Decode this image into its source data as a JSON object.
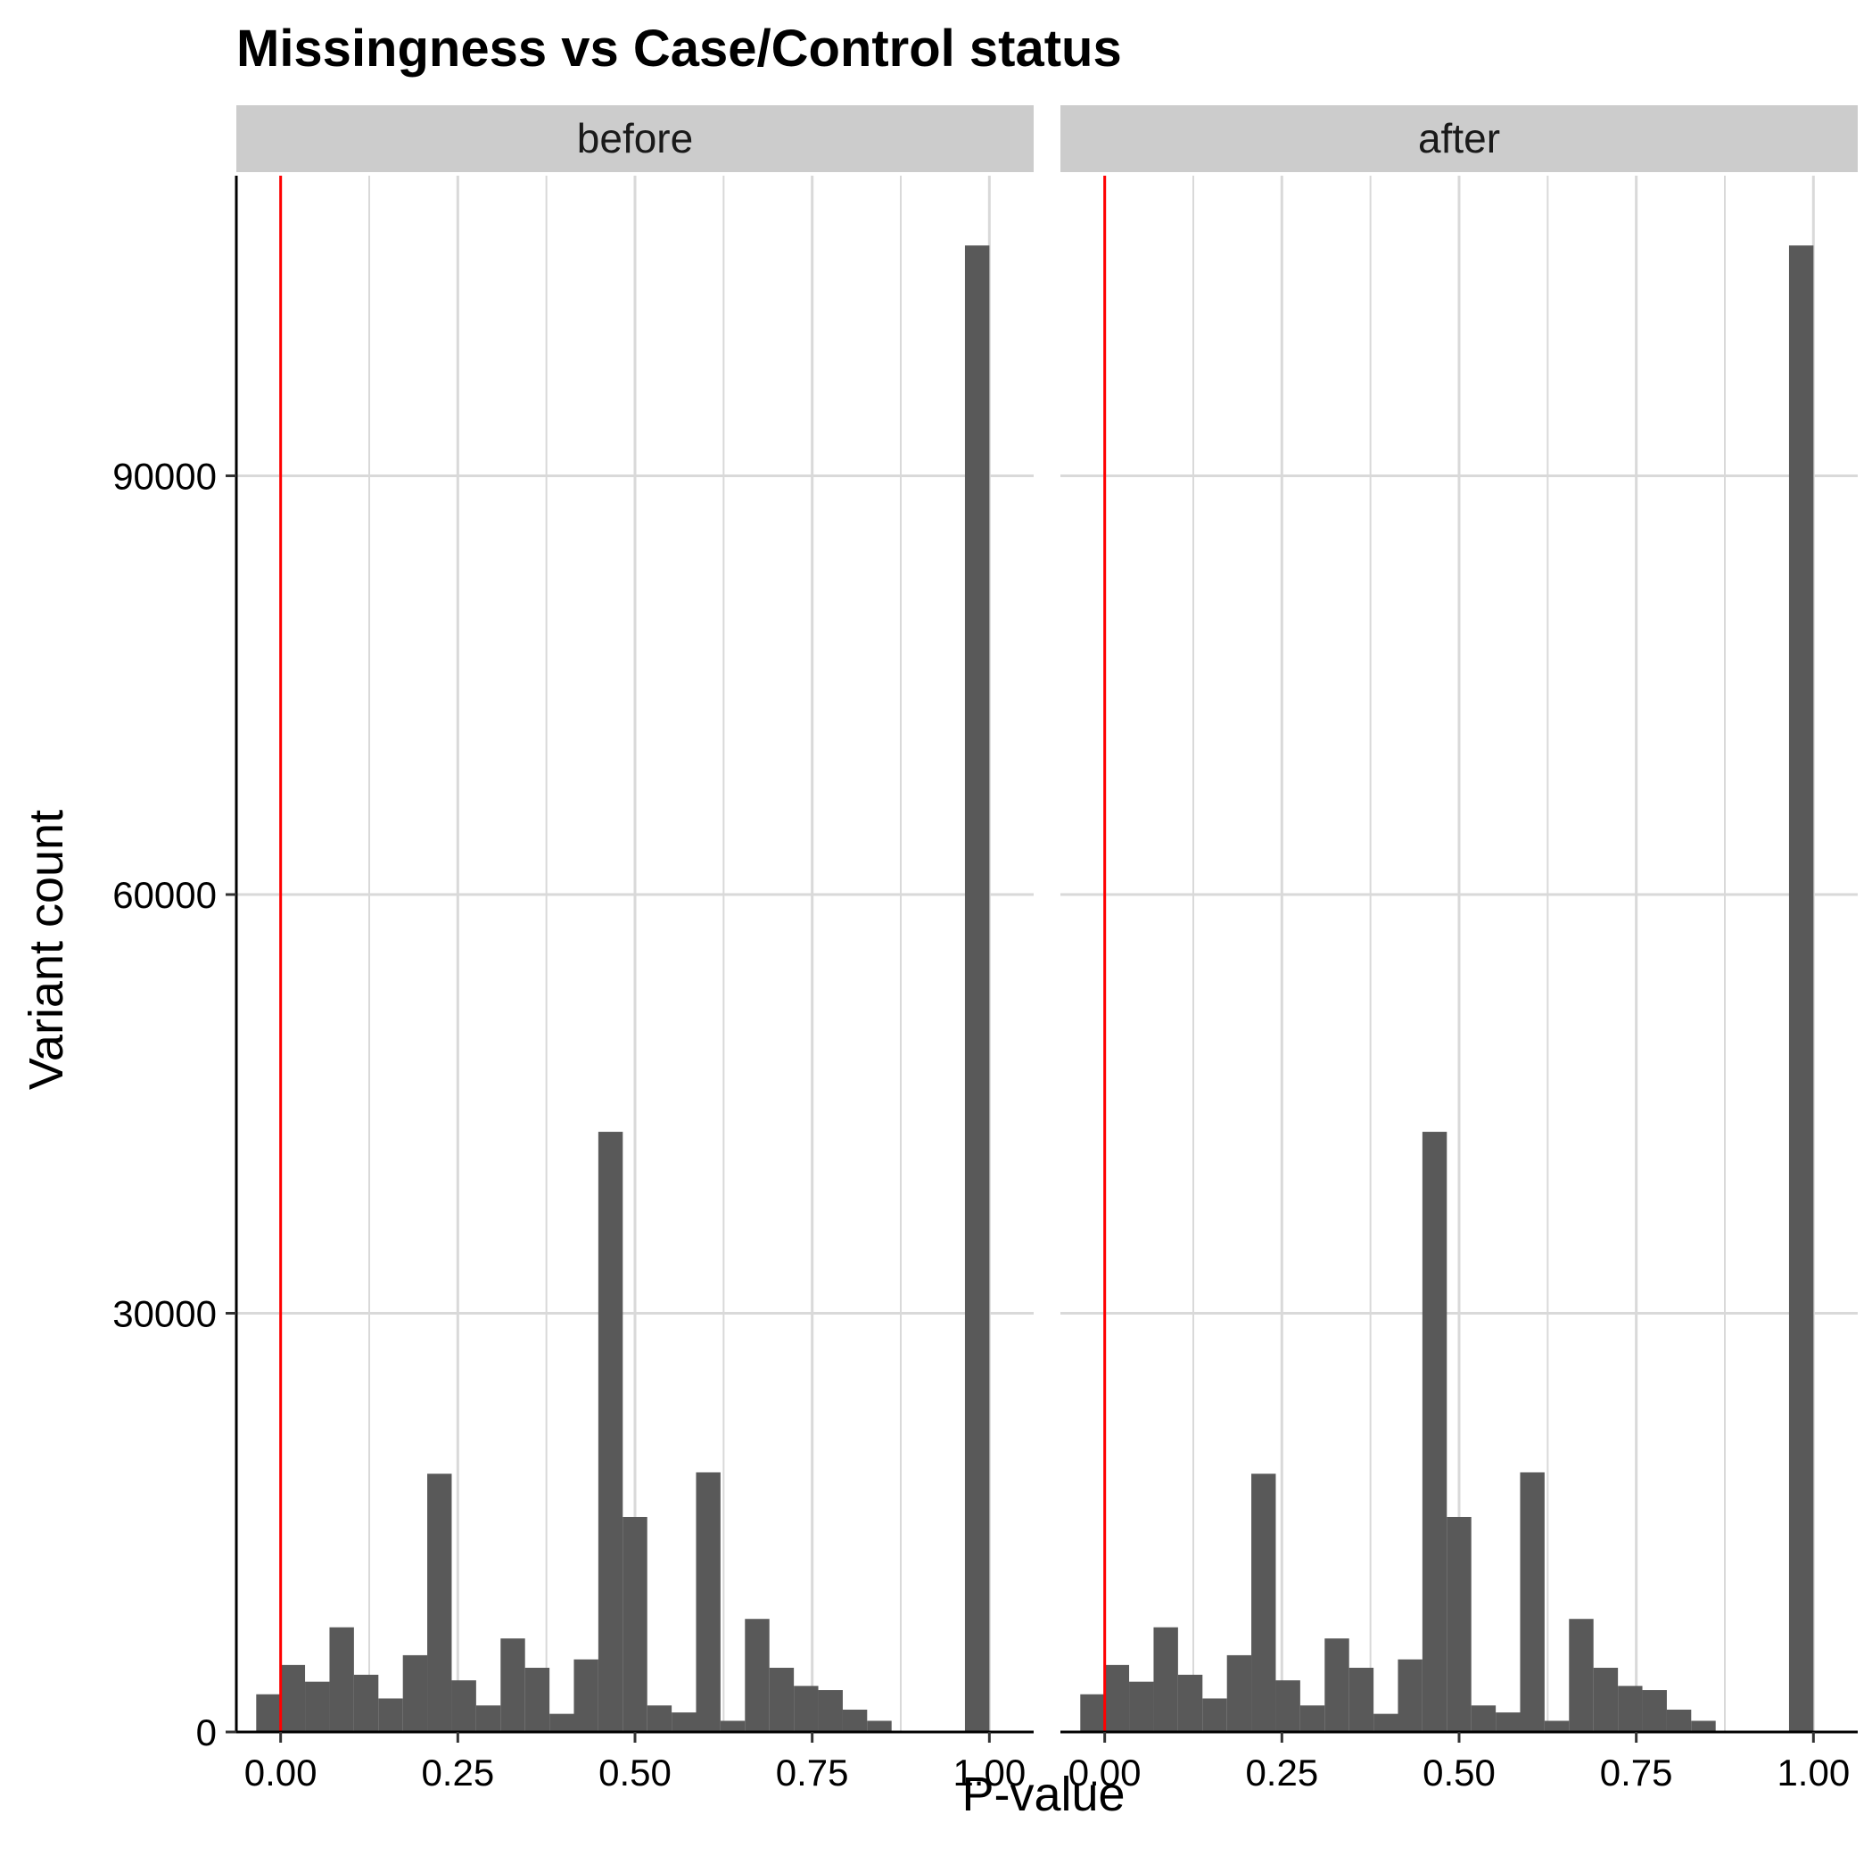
{
  "chart_data": {
    "type": "bar",
    "title": "Missingness vs Case/Control status",
    "xlabel": "P-value",
    "ylabel": "Variant count",
    "xlim": [
      -0.0625,
      1.0625
    ],
    "ylim": [
      0,
      111500
    ],
    "x_ticks": [
      0.0,
      0.25,
      0.5,
      0.75,
      1.0
    ],
    "x_tick_labels": [
      "0.00",
      "0.25",
      "0.50",
      "0.75",
      "1.00"
    ],
    "y_ticks": [
      0,
      30000,
      60000,
      90000
    ],
    "y_tick_labels": [
      "0",
      "30000",
      "60000",
      "90000"
    ],
    "grid": true,
    "bin_width": 0.0345,
    "vline": {
      "x": 0.0,
      "color": "#ff0000"
    },
    "bar_color": "#595959",
    "panels": [
      {
        "label": "before",
        "bins": [
          {
            "x": -0.0172,
            "count": 2700
          },
          {
            "x": 0.0172,
            "count": 4800
          },
          {
            "x": 0.0517,
            "count": 3600
          },
          {
            "x": 0.0862,
            "count": 7500
          },
          {
            "x": 0.1207,
            "count": 4100
          },
          {
            "x": 0.1552,
            "count": 2400
          },
          {
            "x": 0.1897,
            "count": 5500
          },
          {
            "x": 0.2241,
            "count": 18500
          },
          {
            "x": 0.2586,
            "count": 3700
          },
          {
            "x": 0.2931,
            "count": 1900
          },
          {
            "x": 0.3276,
            "count": 6700
          },
          {
            "x": 0.3621,
            "count": 4600
          },
          {
            "x": 0.3966,
            "count": 1300
          },
          {
            "x": 0.431,
            "count": 5200
          },
          {
            "x": 0.4655,
            "count": 43000
          },
          {
            "x": 0.5,
            "count": 15400
          },
          {
            "x": 0.5345,
            "count": 1900
          },
          {
            "x": 0.569,
            "count": 1400
          },
          {
            "x": 0.6034,
            "count": 18600
          },
          {
            "x": 0.6379,
            "count": 800
          },
          {
            "x": 0.6724,
            "count": 8100
          },
          {
            "x": 0.7069,
            "count": 4600
          },
          {
            "x": 0.7414,
            "count": 3300
          },
          {
            "x": 0.7759,
            "count": 3000
          },
          {
            "x": 0.8103,
            "count": 1600
          },
          {
            "x": 0.8448,
            "count": 800
          },
          {
            "x": 0.8793,
            "count": 0
          },
          {
            "x": 0.9138,
            "count": 0
          },
          {
            "x": 0.9483,
            "count": 0
          },
          {
            "x": 0.9828,
            "count": 106500
          }
        ]
      },
      {
        "label": "after",
        "bins": [
          {
            "x": -0.0172,
            "count": 2700
          },
          {
            "x": 0.0172,
            "count": 4800
          },
          {
            "x": 0.0517,
            "count": 3600
          },
          {
            "x": 0.0862,
            "count": 7500
          },
          {
            "x": 0.1207,
            "count": 4100
          },
          {
            "x": 0.1552,
            "count": 2400
          },
          {
            "x": 0.1897,
            "count": 5500
          },
          {
            "x": 0.2241,
            "count": 18500
          },
          {
            "x": 0.2586,
            "count": 3700
          },
          {
            "x": 0.2931,
            "count": 1900
          },
          {
            "x": 0.3276,
            "count": 6700
          },
          {
            "x": 0.3621,
            "count": 4600
          },
          {
            "x": 0.3966,
            "count": 1300
          },
          {
            "x": 0.431,
            "count": 5200
          },
          {
            "x": 0.4655,
            "count": 43000
          },
          {
            "x": 0.5,
            "count": 15400
          },
          {
            "x": 0.5345,
            "count": 1900
          },
          {
            "x": 0.569,
            "count": 1400
          },
          {
            "x": 0.6034,
            "count": 18600
          },
          {
            "x": 0.6379,
            "count": 800
          },
          {
            "x": 0.6724,
            "count": 8100
          },
          {
            "x": 0.7069,
            "count": 4600
          },
          {
            "x": 0.7414,
            "count": 3300
          },
          {
            "x": 0.7759,
            "count": 3000
          },
          {
            "x": 0.8103,
            "count": 1600
          },
          {
            "x": 0.8448,
            "count": 800
          },
          {
            "x": 0.8793,
            "count": 0
          },
          {
            "x": 0.9138,
            "count": 0
          },
          {
            "x": 0.9483,
            "count": 0
          },
          {
            "x": 0.9828,
            "count": 106500
          }
        ]
      }
    ]
  }
}
